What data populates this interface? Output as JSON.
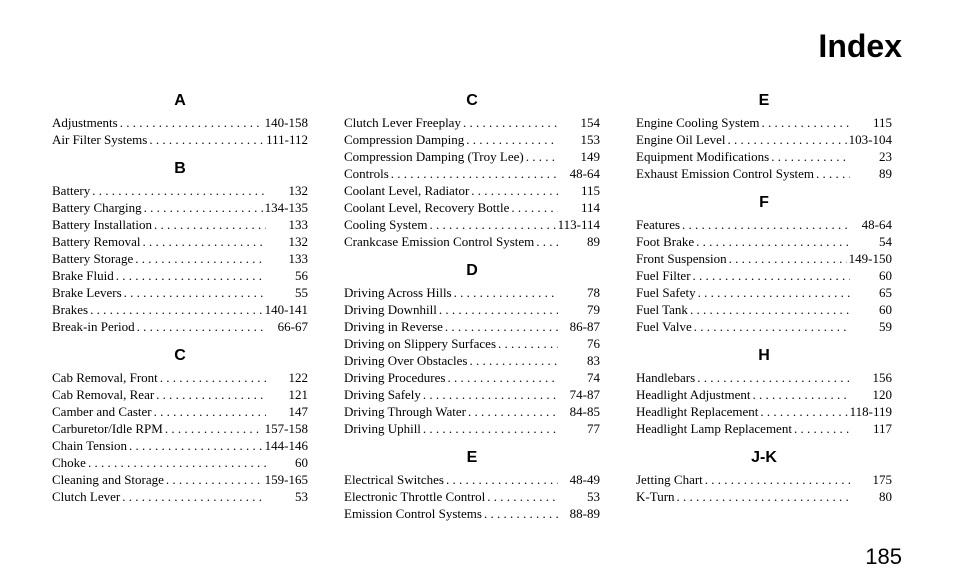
{
  "title": "Index",
  "page_number": "185",
  "columns": [
    {
      "sections": [
        {
          "heading": "A",
          "entries": [
            {
              "label": "Adjustments",
              "page": "140-158"
            },
            {
              "label": "Air Filter Systems",
              "page": "111-112"
            }
          ]
        },
        {
          "heading": "B",
          "entries": [
            {
              "label": "Battery",
              "page": "132"
            },
            {
              "label": "Battery Charging",
              "page": "134-135"
            },
            {
              "label": "Battery Installation",
              "page": "133"
            },
            {
              "label": "Battery Removal",
              "page": "132"
            },
            {
              "label": "Battery Storage",
              "page": "133"
            },
            {
              "label": "Brake Fluid",
              "page": "56"
            },
            {
              "label": "Brake Levers",
              "page": "55"
            },
            {
              "label": "Brakes",
              "page": "140-141"
            },
            {
              "label": "Break-in Period",
              "page": "66-67"
            }
          ]
        },
        {
          "heading": "C",
          "entries": [
            {
              "label": "Cab Removal, Front",
              "page": "122"
            },
            {
              "label": "Cab Removal, Rear",
              "page": "121"
            },
            {
              "label": "Camber and Caster",
              "page": "147"
            },
            {
              "label": "Carburetor/Idle RPM",
              "page": "157-158"
            },
            {
              "label": "Chain Tension",
              "page": "144-146"
            },
            {
              "label": "Choke",
              "page": "60"
            },
            {
              "label": "Cleaning and Storage",
              "page": "159-165"
            },
            {
              "label": "Clutch Lever",
              "page": "53"
            }
          ]
        }
      ]
    },
    {
      "sections": [
        {
          "heading": "C",
          "entries": [
            {
              "label": "Clutch Lever Freeplay",
              "page": "154"
            },
            {
              "label": "Compression Damping",
              "page": "153"
            },
            {
              "label": "Compression Damping (Troy Lee)",
              "page": "149"
            },
            {
              "label": "Controls",
              "page": "48-64"
            },
            {
              "label": "Coolant Level, Radiator",
              "page": "115"
            },
            {
              "label": "Coolant Level, Recovery Bottle",
              "page": "114"
            },
            {
              "label": "Cooling System",
              "page": "113-114"
            },
            {
              "label": "Crankcase Emission Control System",
              "page": "89"
            }
          ]
        },
        {
          "heading": "D",
          "entries": [
            {
              "label": "Driving Across Hills",
              "page": "78"
            },
            {
              "label": "Driving Downhill",
              "page": "79"
            },
            {
              "label": "Driving in Reverse",
              "page": "86-87"
            },
            {
              "label": "Driving on Slippery Surfaces",
              "page": "76"
            },
            {
              "label": "Driving Over Obstacles",
              "page": "83"
            },
            {
              "label": "Driving Procedures",
              "page": "74"
            },
            {
              "label": "Driving Safely",
              "page": "74-87"
            },
            {
              "label": "Driving Through Water",
              "page": "84-85"
            },
            {
              "label": "Driving Uphill",
              "page": "77"
            }
          ]
        },
        {
          "heading": "E",
          "entries": [
            {
              "label": "Electrical Switches",
              "page": "48-49"
            },
            {
              "label": "Electronic Throttle Control",
              "page": "53"
            },
            {
              "label": "Emission Control Systems",
              "page": "88-89"
            }
          ]
        }
      ]
    },
    {
      "sections": [
        {
          "heading": "E",
          "entries": [
            {
              "label": "Engine Cooling System",
              "page": "115"
            },
            {
              "label": "Engine Oil Level",
              "page": "103-104"
            },
            {
              "label": "Equipment Modifications",
              "page": "23"
            },
            {
              "label": "Exhaust Emission Control System",
              "page": "89"
            }
          ]
        },
        {
          "heading": "F",
          "entries": [
            {
              "label": "Features",
              "page": "48-64"
            },
            {
              "label": "Foot Brake",
              "page": "54"
            },
            {
              "label": "Front Suspension",
              "page": "149-150"
            },
            {
              "label": "Fuel Filter",
              "page": "60"
            },
            {
              "label": "Fuel Safety",
              "page": "65"
            },
            {
              "label": "Fuel Tank",
              "page": "60"
            },
            {
              "label": "Fuel Valve",
              "page": "59"
            }
          ]
        },
        {
          "heading": "H",
          "entries": [
            {
              "label": "Handlebars",
              "page": "156"
            },
            {
              "label": "Headlight Adjustment",
              "page": "120"
            },
            {
              "label": "Headlight Replacement",
              "page": "118-119"
            },
            {
              "label": "Headlight Lamp Replacement",
              "page": "117"
            }
          ]
        },
        {
          "heading": "J-K",
          "entries": [
            {
              "label": "Jetting Chart",
              "page": "175"
            },
            {
              "label": "K-Turn",
              "page": "80"
            }
          ]
        }
      ]
    }
  ]
}
